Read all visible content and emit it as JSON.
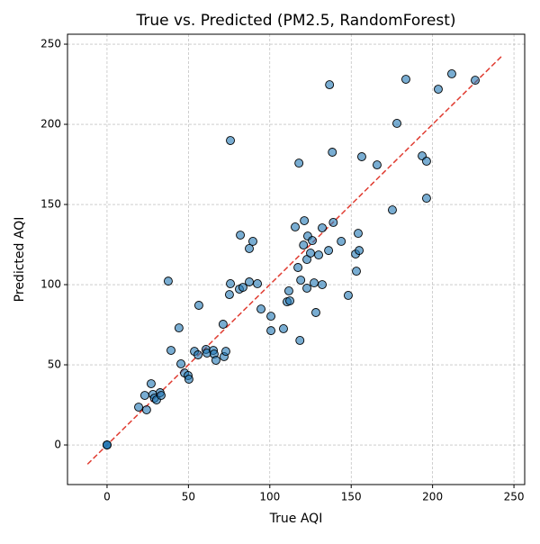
{
  "chart_data": {
    "type": "scatter",
    "title": "True vs. Predicted (PM2.5, RandomForest)",
    "xlabel": "True AQI",
    "ylabel": "Predicted AQI",
    "xlim": [
      -24.3,
      256.6
    ],
    "ylim": [
      -24.7,
      256.2
    ],
    "xticks": [
      0,
      50,
      100,
      150,
      200,
      250
    ],
    "yticks": [
      0,
      50,
      100,
      150,
      200,
      250
    ],
    "grid": true,
    "reference_line": {
      "x": [
        -12,
        243
      ],
      "y": [
        -12,
        243
      ],
      "color": "#e03c31"
    },
    "series": [
      {
        "name": "Predictions",
        "color": "#1f77b4",
        "x": [
          0,
          0,
          0,
          19.4,
          24.3,
          23.2,
          27.1,
          28.2,
          29.1,
          30.4,
          32.6,
          33.2,
          37.6,
          39.3,
          44.2,
          45.4,
          47.6,
          49.8,
          50.3,
          53.7,
          55.9,
          56.4,
          60.8,
          61.4,
          65.3,
          65.8,
          66.9,
          71.3,
          71.9,
          73.0,
          75.2,
          75.8,
          75.8,
          81.3,
          81.9,
          83.5,
          87.4,
          87.4,
          89.6,
          92.4,
          94.6,
          100.7,
          100.7,
          108.4,
          110.6,
          111.7,
          112.3,
          115.6,
          117.3,
          117.9,
          118.5,
          119.0,
          121.2,
          120.7,
          122.8,
          122.8,
          123.3,
          125.0,
          126.1,
          127.2,
          128.3,
          130.0,
          132.2,
          132.2,
          136.1,
          136.7,
          138.4,
          139.0,
          143.9,
          148.2,
          152.7,
          153.2,
          154.3,
          154.9,
          156.5,
          165.9,
          175.3,
          178.1,
          183.6,
          193.6,
          196.3,
          196.3,
          203.5,
          211.8,
          226.2
        ],
        "values": [
          0,
          0,
          0,
          23.6,
          21.9,
          30.9,
          38.2,
          31.5,
          29.2,
          28.1,
          32.6,
          30.9,
          102.2,
          59.0,
          73.0,
          50.6,
          44.9,
          43.3,
          41.0,
          58.4,
          56.2,
          87.1,
          59.6,
          57.3,
          59.0,
          56.7,
          52.8,
          75.3,
          55.1,
          58.4,
          93.8,
          100.6,
          189.9,
          97.2,
          130.9,
          98.3,
          122.5,
          101.7,
          127.0,
          100.6,
          84.8,
          80.3,
          71.3,
          72.5,
          89.3,
          96.1,
          89.9,
          136.0,
          110.7,
          175.8,
          65.2,
          102.8,
          139.9,
          124.7,
          115.7,
          97.8,
          130.3,
          119.7,
          127.5,
          101.1,
          82.6,
          118.5,
          100.0,
          135.4,
          121.3,
          224.7,
          182.6,
          138.8,
          127.0,
          93.3,
          119.1,
          108.4,
          132.0,
          121.3,
          179.8,
          174.7,
          146.6,
          200.6,
          228.1,
          180.3,
          177.0,
          153.9,
          221.9,
          231.5,
          227.5
        ]
      }
    ]
  }
}
